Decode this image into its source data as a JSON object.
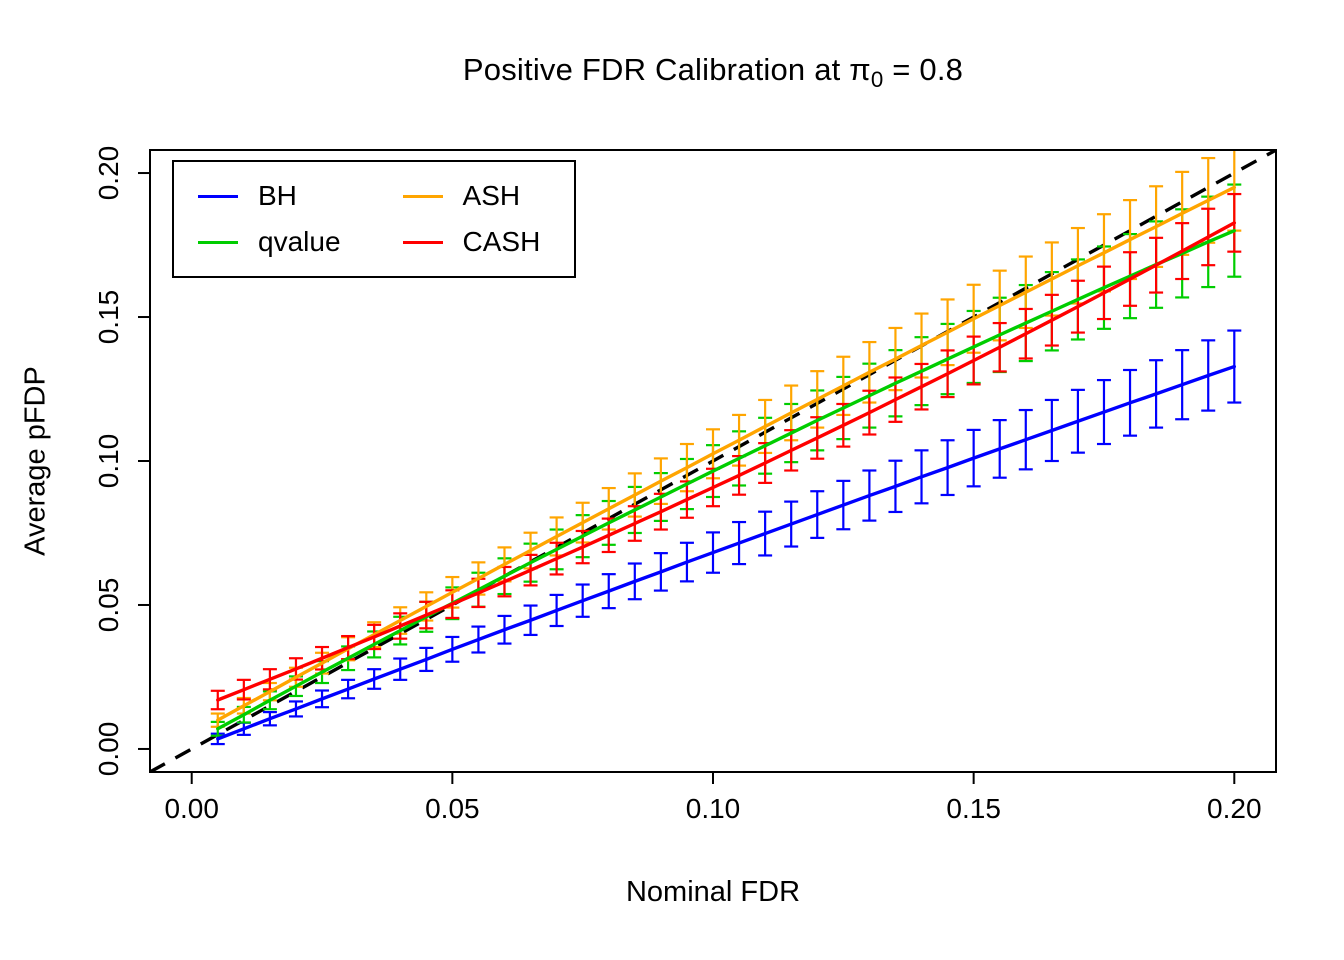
{
  "figure": {
    "background": "#ffffff"
  },
  "title": {
    "prefix": "Positive FDR Calibration at ",
    "pi": "π",
    "sub": "0",
    "suffix": " = 0.8"
  },
  "axes": {
    "xlabel": "Nominal FDR",
    "ylabel": "Average pFDP",
    "xticks": [
      0,
      0.05,
      0.1,
      0.15,
      0.2
    ],
    "xtick_labels": [
      "0.00",
      "0.05",
      "0.10",
      "0.15",
      "0.20"
    ],
    "yticks": [
      0,
      0.05,
      0.1,
      0.15,
      0.2
    ],
    "ytick_labels": [
      "0.00",
      "0.05",
      "0.10",
      "0.15",
      "0.20"
    ]
  },
  "chart_data": {
    "type": "line",
    "title": "Positive FDR Calibration at π₀ = 0.8",
    "xlabel": "Nominal FDR",
    "ylabel": "Average pFDP",
    "xlim": [
      -0.008,
      0.208
    ],
    "ylim": [
      -0.008,
      0.208
    ],
    "grid": false,
    "legend_position": "top-left",
    "ticks": [
      0,
      0.05,
      0.1,
      0.15,
      0.2
    ],
    "x": [
      0.005,
      0.01,
      0.015,
      0.02,
      0.025,
      0.03,
      0.035,
      0.04,
      0.045,
      0.05,
      0.055,
      0.06,
      0.065,
      0.07,
      0.075,
      0.08,
      0.085,
      0.09,
      0.095,
      0.1,
      0.105,
      0.11,
      0.115,
      0.12,
      0.125,
      0.13,
      0.135,
      0.14,
      0.145,
      0.15,
      0.155,
      0.16,
      0.165,
      0.17,
      0.175,
      0.18,
      0.185,
      0.19,
      0.195,
      0.2
    ],
    "series": [
      {
        "name": "BH",
        "color": "#0000FF",
        "values": [
          0.0035,
          0.007,
          0.0105,
          0.0139,
          0.0174,
          0.0208,
          0.0243,
          0.0277,
          0.0311,
          0.0346,
          0.038,
          0.0414,
          0.0447,
          0.0481,
          0.0515,
          0.0548,
          0.0582,
          0.0615,
          0.0649,
          0.0682,
          0.0715,
          0.0748,
          0.0781,
          0.0814,
          0.0847,
          0.088,
          0.0912,
          0.0945,
          0.0977,
          0.101,
          0.1042,
          0.1074,
          0.1106,
          0.1138,
          0.117,
          0.1202,
          0.1233,
          0.1265,
          0.1297,
          0.1328
        ],
        "se": [
          0.0018,
          0.0021,
          0.0023,
          0.0026,
          0.0029,
          0.0032,
          0.0034,
          0.0037,
          0.004,
          0.0043,
          0.0045,
          0.0048,
          0.0051,
          0.0054,
          0.0056,
          0.0059,
          0.0062,
          0.0065,
          0.0067,
          0.007,
          0.0073,
          0.0076,
          0.0078,
          0.0081,
          0.0084,
          0.0087,
          0.0089,
          0.0092,
          0.0095,
          0.0098,
          0.01,
          0.0103,
          0.0106,
          0.0109,
          0.0111,
          0.0114,
          0.0117,
          0.012,
          0.0122,
          0.0125
        ]
      },
      {
        "name": "qvalue",
        "color": "#00CD00",
        "values": [
          0.007,
          0.0119,
          0.0169,
          0.0218,
          0.0267,
          0.0315,
          0.0363,
          0.0411,
          0.0459,
          0.0506,
          0.0553,
          0.06,
          0.0647,
          0.0693,
          0.0739,
          0.0785,
          0.083,
          0.0875,
          0.092,
          0.0965,
          0.1009,
          0.1053,
          0.1097,
          0.1141,
          0.1184,
          0.1227,
          0.127,
          0.1312,
          0.1354,
          0.1396,
          0.1438,
          0.1479,
          0.152,
          0.1561,
          0.1602,
          0.1642,
          0.1682,
          0.1721,
          0.1761,
          0.18
        ],
        "se": [
          0.0024,
          0.0027,
          0.0031,
          0.0034,
          0.0038,
          0.0041,
          0.0045,
          0.0048,
          0.0052,
          0.0055,
          0.0059,
          0.0062,
          0.0066,
          0.0069,
          0.0073,
          0.0076,
          0.008,
          0.0083,
          0.0087,
          0.009,
          0.0094,
          0.0097,
          0.0101,
          0.0104,
          0.0108,
          0.0111,
          0.0115,
          0.0118,
          0.0122,
          0.0125,
          0.0129,
          0.0132,
          0.0136,
          0.0139,
          0.0143,
          0.0146,
          0.015,
          0.0153,
          0.0157,
          0.016
        ]
      },
      {
        "name": "ASH",
        "color": "#FFA500",
        "values": [
          0.01,
          0.015,
          0.0199,
          0.0249,
          0.0298,
          0.0348,
          0.0397,
          0.0446,
          0.0495,
          0.0544,
          0.0592,
          0.0641,
          0.0689,
          0.0738,
          0.0786,
          0.0834,
          0.0882,
          0.093,
          0.0977,
          0.1025,
          0.1072,
          0.112,
          0.1167,
          0.1214,
          0.1261,
          0.1308,
          0.1354,
          0.1401,
          0.1447,
          0.1494,
          0.154,
          0.1586,
          0.1632,
          0.1678,
          0.1723,
          0.1769,
          0.1814,
          0.186,
          0.1905,
          0.195
        ],
        "se": [
          0.0023,
          0.0027,
          0.003,
          0.0033,
          0.0036,
          0.004,
          0.0043,
          0.0046,
          0.0049,
          0.0053,
          0.0056,
          0.0059,
          0.0062,
          0.0066,
          0.0069,
          0.0072,
          0.0075,
          0.0079,
          0.0082,
          0.0085,
          0.0088,
          0.0092,
          0.0095,
          0.0098,
          0.0101,
          0.0105,
          0.0108,
          0.0111,
          0.0114,
          0.0118,
          0.0121,
          0.0124,
          0.0127,
          0.0131,
          0.0134,
          0.0137,
          0.014,
          0.0144,
          0.0147,
          0.015
        ]
      },
      {
        "name": "CASH",
        "color": "#FF0000",
        "values": [
          0.017,
          0.0206,
          0.0242,
          0.0278,
          0.0315,
          0.0352,
          0.0389,
          0.0427,
          0.0465,
          0.0503,
          0.0542,
          0.0581,
          0.0621,
          0.0661,
          0.0701,
          0.0742,
          0.0783,
          0.0824,
          0.0866,
          0.0908,
          0.095,
          0.0993,
          0.1037,
          0.108,
          0.1124,
          0.1168,
          0.1213,
          0.1258,
          0.1303,
          0.1349,
          0.1395,
          0.1442,
          0.1489,
          0.1536,
          0.1584,
          0.1632,
          0.168,
          0.1729,
          0.1778,
          0.1827
        ],
        "se": [
          0.0032,
          0.0034,
          0.0035,
          0.0037,
          0.0039,
          0.004,
          0.0042,
          0.0044,
          0.0046,
          0.0048,
          0.0049,
          0.0051,
          0.0053,
          0.0055,
          0.0056,
          0.0058,
          0.006,
          0.0062,
          0.0063,
          0.0065,
          0.0067,
          0.0069,
          0.007,
          0.0072,
          0.0074,
          0.0076,
          0.0077,
          0.0079,
          0.0081,
          0.0083,
          0.0084,
          0.0086,
          0.0088,
          0.009,
          0.0091,
          0.0093,
          0.0095,
          0.0097,
          0.0098,
          0.01
        ]
      }
    ],
    "reference_line": {
      "type": "identity",
      "intercept": 0,
      "slope": 1,
      "style": "dashed",
      "color": "#000000"
    }
  }
}
